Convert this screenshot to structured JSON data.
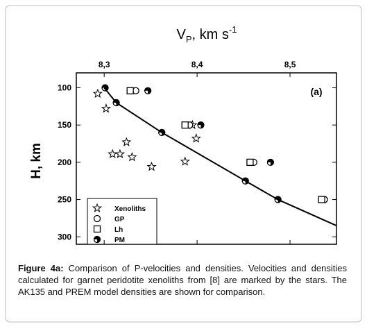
{
  "chart_data": {
    "type": "scatter",
    "title": {
      "base": "V",
      "sub": "P",
      "mid": ", km s",
      "sup": "-1"
    },
    "y_label": "H, km",
    "annotation": "(a)",
    "xlim": [
      8.27,
      8.55
    ],
    "xticks": [
      {
        "value": 8.3,
        "label": "8,3"
      },
      {
        "value": 8.4,
        "label": "8,4"
      },
      {
        "value": 8.5,
        "label": "8,5"
      }
    ],
    "ylim": [
      310,
      80
    ],
    "yticks": [
      100,
      150,
      200,
      250,
      300
    ],
    "legend": "bottom-left",
    "series": [
      {
        "name": "Xenoliths",
        "marker": "star",
        "color": "#000000",
        "x": [
          8.293,
          8.302,
          8.324,
          8.309,
          8.317,
          8.33,
          8.351,
          8.387,
          8.395,
          8.399
        ],
        "values": [
          108,
          128,
          173,
          189,
          189,
          193,
          206,
          199,
          150,
          168
        ]
      },
      {
        "name": "GP",
        "marker": "circle",
        "color": "#000000",
        "x": [
          8.334,
          8.392,
          8.461,
          8.537
        ],
        "values": [
          104,
          150,
          200,
          250
        ]
      },
      {
        "name": "Lh",
        "marker": "square",
        "color": "#000000",
        "x": [
          8.328,
          8.387,
          8.457,
          8.534
        ],
        "values": [
          104,
          150,
          200,
          250
        ]
      },
      {
        "name": "PM",
        "marker": "half",
        "color": "#000000",
        "x": [
          8.347,
          8.404,
          8.479,
          8.301,
          8.313,
          8.362,
          8.452,
          8.487
        ],
        "values": [
          104,
          150,
          200,
          100,
          120,
          160,
          225,
          250
        ]
      },
      {
        "marker": "line",
        "color": "#000000",
        "x": [
          8.3,
          8.313,
          8.362,
          8.452,
          8.487,
          8.55
        ],
        "values": [
          100,
          120,
          160,
          225,
          250,
          285
        ]
      }
    ]
  },
  "caption": {
    "label": "Figure 4a:",
    "text": "Comparison of P-velocities and densities. Velocities and densities calculated for garnet peridotite xenoliths from [8] are marked by the stars. The AK135 and PREM model densities are shown for comparison."
  }
}
